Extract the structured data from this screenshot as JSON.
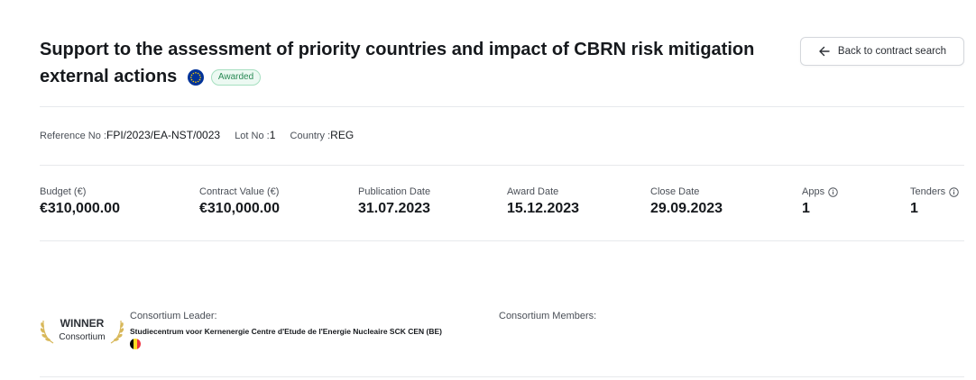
{
  "header": {
    "title": "Support to the assessment of priority countries and impact of CBRN risk mitigation external actions",
    "status_badge": "Awarded",
    "back_button": "Back to contract search"
  },
  "reference": {
    "ref_label": "Reference No :",
    "ref_value": "FPI/2023/EA-NST/0023",
    "lot_label": "Lot No :",
    "lot_value": "1",
    "country_label": "Country :",
    "country_value": "REG"
  },
  "metrics": [
    {
      "label": "Budget (€)",
      "value": "€310,000.00"
    },
    {
      "label": "Contract Value (€)",
      "value": "€310,000.00"
    },
    {
      "label": "Publication Date",
      "value": "31.07.2023"
    },
    {
      "label": "Award Date",
      "value": "15.12.2023"
    },
    {
      "label": "Close Date",
      "value": "29.09.2023"
    },
    {
      "label": "Apps",
      "value": "1"
    },
    {
      "label": "Tenders",
      "value": "1"
    }
  ],
  "winner": {
    "title": "WINNER",
    "subtitle": "Consortium",
    "leader_label": "Consortium Leader:",
    "leader_name": "Studiecentrum voor Kernenergie Centre d'Etude de l'Energie Nucleaire SCK CEN (BE)",
    "members_label": "Consortium Members:"
  },
  "colors": {
    "badge_green": "#2a8a55",
    "eu_blue": "#003399",
    "eu_star": "#ffcc00",
    "laurel_gold": "#d8b85a",
    "be_black": "#000000",
    "be_yellow": "#fdda24",
    "be_red": "#ef3340"
  }
}
